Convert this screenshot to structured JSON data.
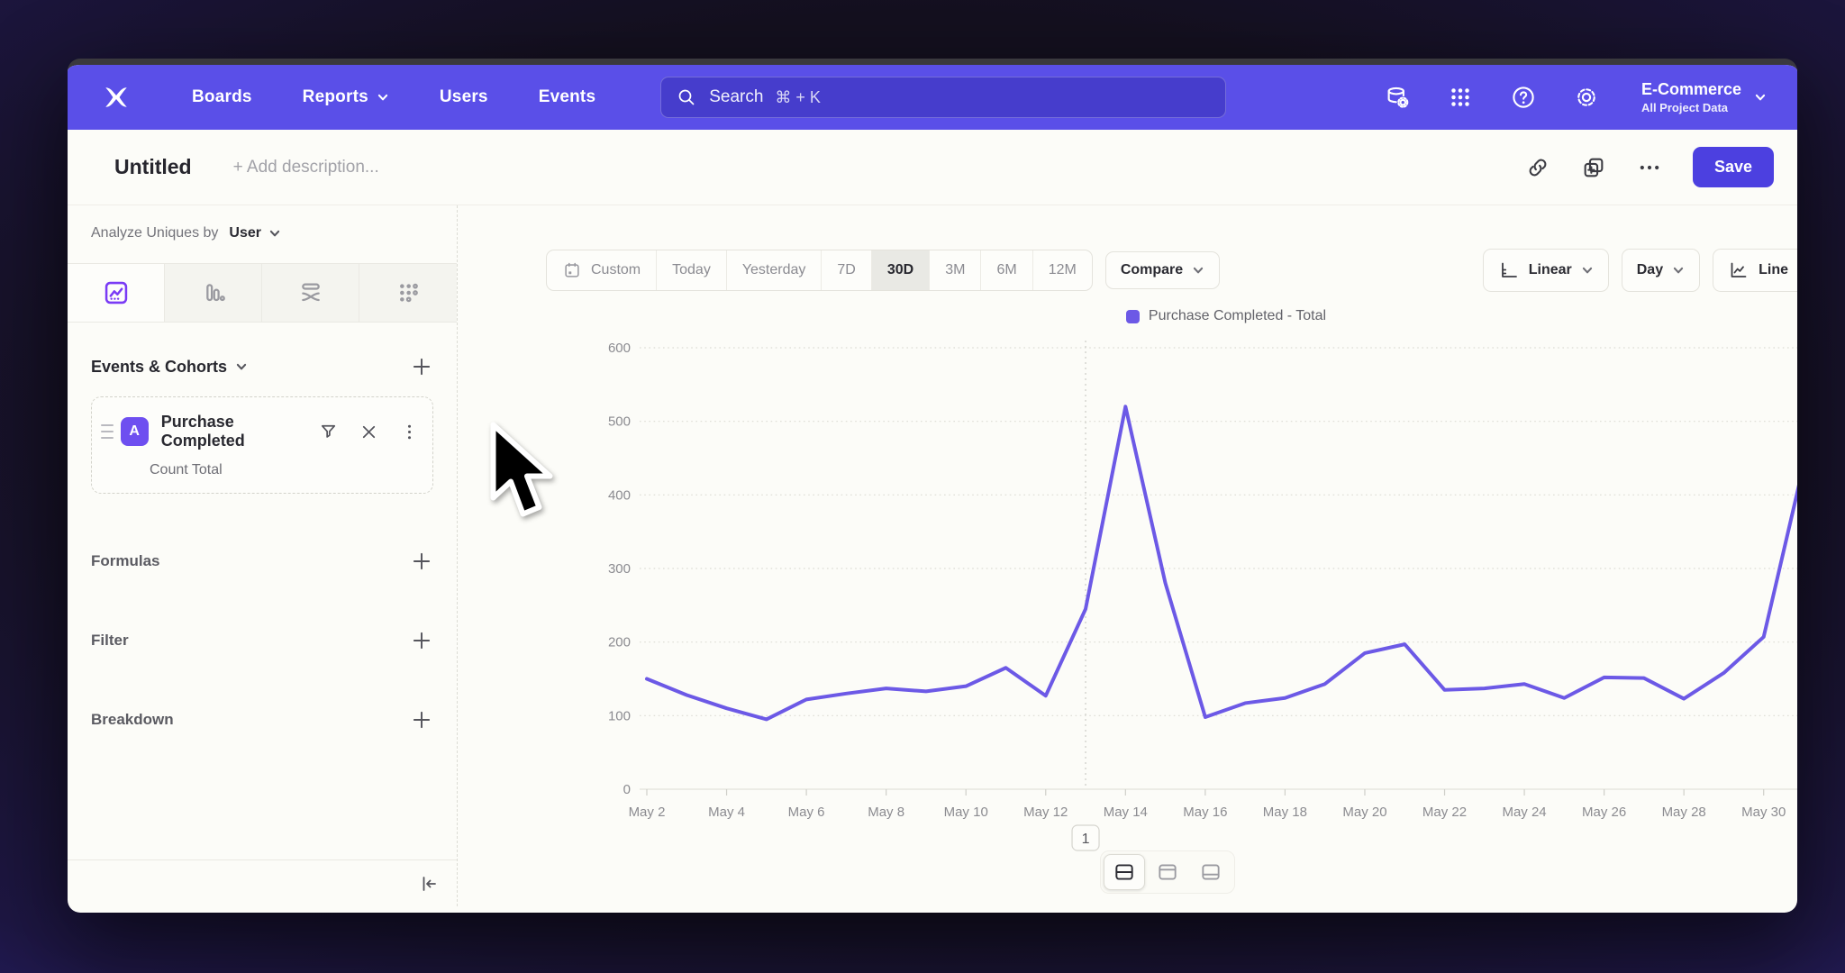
{
  "nav": {
    "items": [
      "Boards",
      "Reports",
      "Users",
      "Events"
    ],
    "search": {
      "placeholder": "Search",
      "shortcut": "⌘ + K"
    },
    "project": {
      "name": "E-Commerce",
      "scope": "All Project Data"
    }
  },
  "titlebar": {
    "title": "Untitled",
    "description_placeholder": "+ Add description...",
    "save_label": "Save"
  },
  "sidebar": {
    "analyze_label": "Analyze Uniques by",
    "analyze_value": "User",
    "events_header": "Events & Cohorts",
    "event_card": {
      "badge": "A",
      "name": "Purchase Completed",
      "metric": "Count Total"
    },
    "sections": [
      "Formulas",
      "Filter",
      "Breakdown"
    ]
  },
  "controls": {
    "ranges": [
      "Custom",
      "Today",
      "Yesterday",
      "7D",
      "30D",
      "3M",
      "6M",
      "12M"
    ],
    "selected_range": "30D",
    "compare_label": "Compare",
    "scale_label": "Linear",
    "interval_label": "Day",
    "chart_type_label": "Line"
  },
  "annotation": {
    "label": "1",
    "index": 11
  },
  "chart_data": {
    "type": "line",
    "title": "",
    "x": [
      "May 2",
      "May 3",
      "May 4",
      "May 5",
      "May 6",
      "May 7",
      "May 8",
      "May 9",
      "May 10",
      "May 11",
      "May 12",
      "May 13",
      "May 14",
      "May 15",
      "May 16",
      "May 17",
      "May 18",
      "May 19",
      "May 20",
      "May 21",
      "May 22",
      "May 23",
      "May 24",
      "May 25",
      "May 26",
      "May 27",
      "May 28",
      "May 29",
      "May 30",
      "May 31"
    ],
    "xtick_every": 2,
    "series": [
      {
        "name": "Purchase Completed - Total",
        "color": "#6c59e6",
        "values": [
          150,
          128,
          110,
          95,
          122,
          130,
          137,
          133,
          140,
          165,
          127,
          245,
          520,
          280,
          98,
          117,
          124,
          143,
          185,
          197,
          135,
          137,
          143,
          124,
          152,
          151,
          123,
          158,
          207,
          440
        ]
      }
    ],
    "ylim": [
      0,
      600
    ],
    "yticks": [
      0,
      100,
      200,
      300,
      400,
      500,
      600
    ],
    "grid": "horizontal-dotted",
    "legend_position": "top-center"
  }
}
